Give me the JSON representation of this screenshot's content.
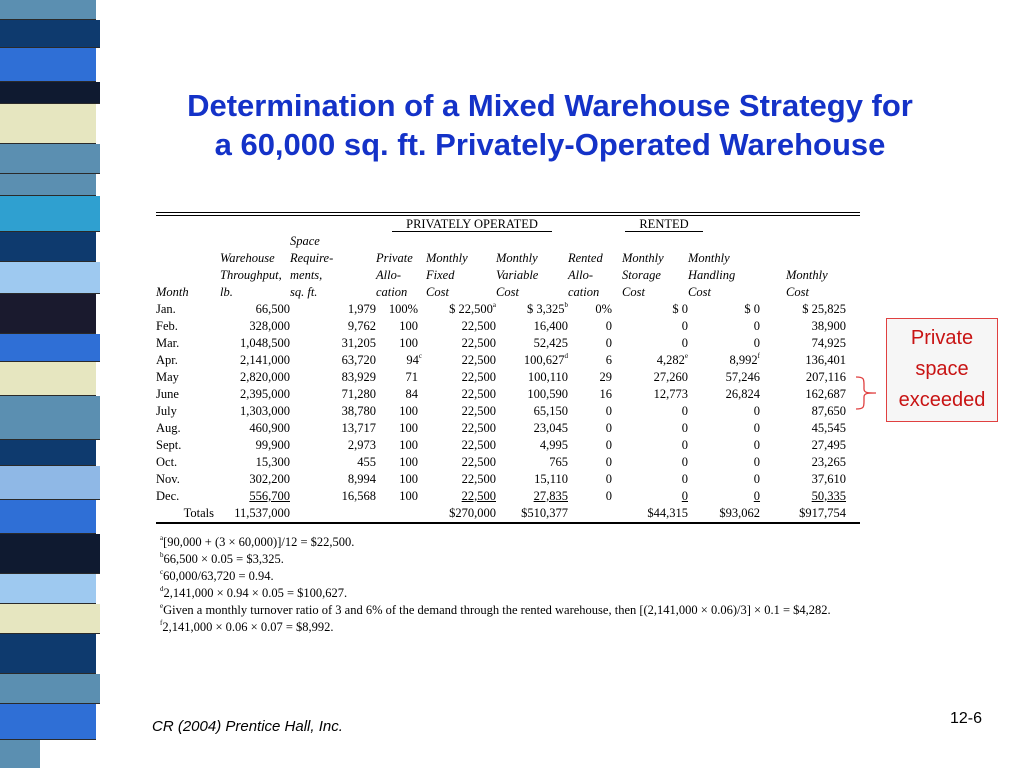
{
  "title_line1": "Determination of a Mixed Warehouse Strategy for",
  "title_line2": "a 60,000 sq. ft. Privately-Operated Warehouse",
  "groups": {
    "private": "PRIVATELY OPERATED",
    "rented": "RENTED"
  },
  "headers": {
    "month": [
      "",
      "",
      "",
      "Month"
    ],
    "throughput": [
      "",
      "Warehouse",
      "Throughput,",
      "lb."
    ],
    "space": [
      "Space",
      "Require-",
      "ments,",
      "sq. ft."
    ],
    "private_alloc": [
      "",
      "Private",
      "Allo-",
      "cation"
    ],
    "fixed": [
      "",
      "Monthly",
      "Fixed",
      "Cost"
    ],
    "variable": [
      "",
      "Monthly",
      "Variable",
      "Cost"
    ],
    "rented_alloc": [
      "",
      "Rented",
      "Allo-",
      "cation"
    ],
    "storage": [
      "",
      "Monthly",
      "Storage",
      "Cost"
    ],
    "handling": [
      "",
      "Monthly",
      "Handling",
      "Cost"
    ],
    "monthly": [
      "",
      "",
      "Monthly",
      "Cost"
    ]
  },
  "rows": [
    {
      "month": "Jan.",
      "thr": "66,500",
      "space": "1,979",
      "palloc": "100%",
      "fixed": "$ 22,500",
      "fixed_sup": "a",
      "var": "$ 3,325",
      "var_sup": "b",
      "ralloc": "0%",
      "stor": "$ 0",
      "stor_sup": "",
      "hand": "$ 0",
      "hand_sup": "",
      "total": "$ 25,825",
      "palloc_sup": ""
    },
    {
      "month": "Feb.",
      "thr": "328,000",
      "space": "9,762",
      "palloc": "100",
      "fixed": "22,500",
      "fixed_sup": "",
      "var": "16,400",
      "var_sup": "",
      "ralloc": "0",
      "stor": "0",
      "stor_sup": "",
      "hand": "0",
      "hand_sup": "",
      "total": "38,900",
      "palloc_sup": ""
    },
    {
      "month": "Mar.",
      "thr": "1,048,500",
      "space": "31,205",
      "palloc": "100",
      "fixed": "22,500",
      "fixed_sup": "",
      "var": "52,425",
      "var_sup": "",
      "ralloc": "0",
      "stor": "0",
      "stor_sup": "",
      "hand": "0",
      "hand_sup": "",
      "total": "74,925",
      "palloc_sup": ""
    },
    {
      "month": "Apr.",
      "thr": "2,141,000",
      "space": "63,720",
      "palloc": "94",
      "palloc_sup": "c",
      "fixed": "22,500",
      "fixed_sup": "",
      "var": "100,627",
      "var_sup": "d",
      "ralloc": "6",
      "stor": "4,282",
      "stor_sup": "e",
      "hand": "8,992",
      "hand_sup": "f",
      "total": "136,401"
    },
    {
      "month": "May",
      "thr": "2,820,000",
      "space": "83,929",
      "palloc": "71",
      "palloc_sup": "",
      "fixed": "22,500",
      "fixed_sup": "",
      "var": "100,110",
      "var_sup": "",
      "ralloc": "29",
      "stor": "27,260",
      "stor_sup": "",
      "hand": "57,246",
      "hand_sup": "",
      "total": "207,116"
    },
    {
      "month": "June",
      "thr": "2,395,000",
      "space": "71,280",
      "palloc": "84",
      "palloc_sup": "",
      "fixed": "22,500",
      "fixed_sup": "",
      "var": "100,590",
      "var_sup": "",
      "ralloc": "16",
      "stor": "12,773",
      "stor_sup": "",
      "hand": "26,824",
      "hand_sup": "",
      "total": "162,687"
    },
    {
      "month": "July",
      "thr": "1,303,000",
      "space": "38,780",
      "palloc": "100",
      "palloc_sup": "",
      "fixed": "22,500",
      "fixed_sup": "",
      "var": "65,150",
      "var_sup": "",
      "ralloc": "0",
      "stor": "0",
      "stor_sup": "",
      "hand": "0",
      "hand_sup": "",
      "total": "87,650"
    },
    {
      "month": "Aug.",
      "thr": "460,900",
      "space": "13,717",
      "palloc": "100",
      "palloc_sup": "",
      "fixed": "22,500",
      "fixed_sup": "",
      "var": "23,045",
      "var_sup": "",
      "ralloc": "0",
      "stor": "0",
      "stor_sup": "",
      "hand": "0",
      "hand_sup": "",
      "total": "45,545"
    },
    {
      "month": "Sept.",
      "thr": "99,900",
      "space": "2,973",
      "palloc": "100",
      "palloc_sup": "",
      "fixed": "22,500",
      "fixed_sup": "",
      "var": "4,995",
      "var_sup": "",
      "ralloc": "0",
      "stor": "0",
      "stor_sup": "",
      "hand": "0",
      "hand_sup": "",
      "total": "27,495"
    },
    {
      "month": "Oct.",
      "thr": "15,300",
      "space": "455",
      "palloc": "100",
      "palloc_sup": "",
      "fixed": "22,500",
      "fixed_sup": "",
      "var": "765",
      "var_sup": "",
      "ralloc": "0",
      "stor": "0",
      "stor_sup": "",
      "hand": "0",
      "hand_sup": "",
      "total": "23,265"
    },
    {
      "month": "Nov.",
      "thr": "302,200",
      "space": "8,994",
      "palloc": "100",
      "palloc_sup": "",
      "fixed": "22,500",
      "fixed_sup": "",
      "var": "15,110",
      "var_sup": "",
      "ralloc": "0",
      "stor": "0",
      "stor_sup": "",
      "hand": "0",
      "hand_sup": "",
      "total": "37,610"
    },
    {
      "month": "Dec.",
      "thr": "556,700",
      "space": "16,568",
      "palloc": "100",
      "palloc_sup": "",
      "fixed": "22,500",
      "fixed_sup": "",
      "var": "27,835",
      "var_sup": "",
      "ralloc": "0",
      "stor": "0",
      "stor_sup": "",
      "hand": "0",
      "hand_sup": "",
      "total": "50,335",
      "last": true
    }
  ],
  "totals": {
    "label": "Totals",
    "thr": "11,537,000",
    "fixed": "$270,000",
    "var": "$510,377",
    "stor": "$44,315",
    "hand": "$93,062",
    "total": "$917,754"
  },
  "footnotes": [
    {
      "mark": "a",
      "text": "[90,000 + (3 × 60,000)]/12 = $22,500."
    },
    {
      "mark": "b",
      "text": "66,500 × 0.05 = $3,325."
    },
    {
      "mark": "c",
      "text": "60,000/63,720 = 0.94."
    },
    {
      "mark": "d",
      "text": "2,141,000 × 0.94 × 0.05 = $100,627."
    },
    {
      "mark": "e",
      "text": "Given a monthly turnover ratio of 3 and 6% of the demand through the rented warehouse, then [(2,141,000 × 0.06)/3] × 0.1 = $4,282."
    },
    {
      "mark": "f",
      "text": "2,141,000 × 0.06 × 0.07 = $8,992."
    }
  ],
  "callout": [
    "Private",
    "space",
    "exceeded"
  ],
  "footer_left": "CR (2004) Prentice Hall, Inc.",
  "footer_right": "12-6",
  "colors": {
    "title": "#1432c8",
    "callout_text": "#c81414",
    "callout_border": "#e04040"
  }
}
